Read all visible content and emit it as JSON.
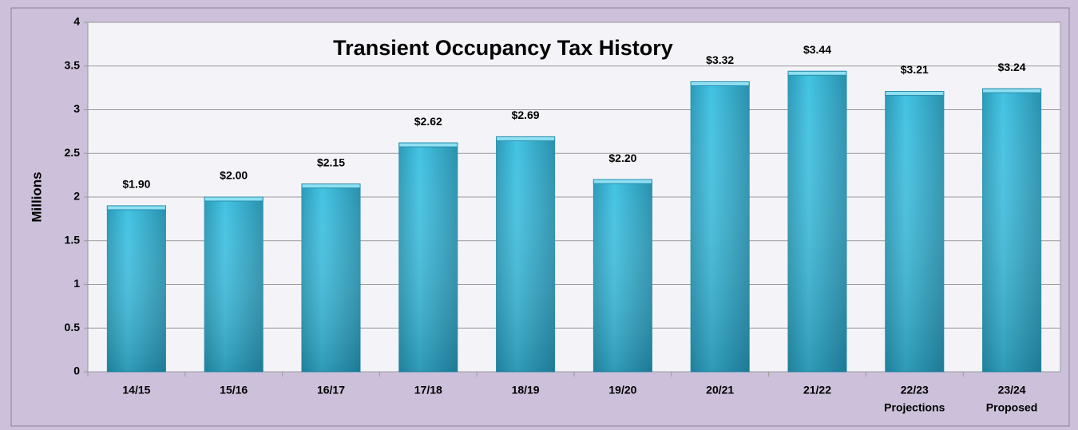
{
  "chart_data": {
    "type": "bar",
    "title": "Transient Occupancy Tax History",
    "y_label": "Millions",
    "categories": [
      "14/15",
      "15/16",
      "16/17",
      "17/18",
      "18/19",
      "19/20",
      "20/21",
      "21/22",
      "22/23",
      "23/24"
    ],
    "category_sublabels": [
      null,
      null,
      null,
      null,
      null,
      null,
      null,
      null,
      "Projections",
      "Proposed"
    ],
    "values": [
      1.9,
      2.0,
      2.15,
      2.62,
      2.69,
      2.2,
      3.32,
      3.44,
      3.21,
      3.24
    ],
    "value_labels": [
      "$1.90",
      "$2.00",
      "$2.15",
      "$2.62",
      "$2.69",
      "$2.20",
      "$3.32",
      "$3.44",
      "$3.21",
      "$3.24"
    ],
    "color": "#3bb9d9",
    "ylim": [
      0,
      4
    ],
    "yticks": [
      0,
      0.5,
      1,
      1.5,
      2,
      2.5,
      3,
      3.5,
      4
    ],
    "grid": true
  }
}
